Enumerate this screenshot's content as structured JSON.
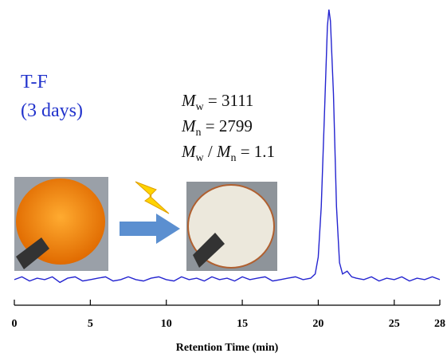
{
  "chart_data": {
    "type": "line",
    "x_label": "Retention Time (min)",
    "xlim": [
      0,
      28
    ],
    "xticks": [
      0,
      5,
      10,
      15,
      20,
      25,
      28
    ],
    "ylim": [
      0,
      100
    ],
    "grid": false,
    "annotations": [
      "T-F",
      "(3 days)"
    ],
    "stats": [
      [
        {
          "t": "M",
          "italic": true
        },
        {
          "t": "w",
          "sub": true
        },
        {
          "t": " = 3111"
        }
      ],
      [
        {
          "t": "M",
          "italic": true
        },
        {
          "t": "n",
          "sub": true
        },
        {
          "t": " = 2799"
        }
      ],
      [
        {
          "t": "M",
          "italic": true
        },
        {
          "t": "w",
          "sub": true
        },
        {
          "t": " / "
        },
        {
          "t": "M",
          "italic": true
        },
        {
          "t": "n",
          "sub": true
        },
        {
          "t": " = 1.1"
        }
      ]
    ],
    "series": [
      {
        "color": "#2424d0",
        "x": [
          0,
          0.5,
          1,
          1.5,
          2,
          2.5,
          3,
          3.5,
          4,
          4.5,
          5,
          5.5,
          6,
          6.5,
          7,
          7.5,
          8,
          8.5,
          9,
          9.5,
          10,
          10.5,
          11,
          11.5,
          12,
          12.5,
          13,
          13.5,
          14,
          14.5,
          15,
          15.5,
          16,
          16.5,
          17,
          17.5,
          18,
          18.5,
          19,
          19.5,
          19.8,
          20.0,
          20.2,
          20.4,
          20.6,
          20.7,
          20.8,
          21.0,
          21.2,
          21.4,
          21.6,
          21.9,
          22.2,
          22.5,
          23,
          23.5,
          24,
          24.5,
          25,
          25.5,
          26,
          26.5,
          27,
          27.5,
          28
        ],
        "values": [
          4,
          5,
          3.5,
          4.5,
          4,
          5,
          3,
          4.5,
          5,
          3.5,
          4,
          4.5,
          5,
          3.5,
          4,
          5,
          4,
          3.5,
          4.5,
          5,
          4,
          3.5,
          5,
          4,
          4.5,
          3.5,
          5,
          4,
          4.5,
          3.5,
          5,
          4,
          4.5,
          5,
          3.5,
          4,
          4.5,
          5,
          4,
          4.5,
          6,
          12,
          30,
          62,
          94,
          100,
          96,
          70,
          30,
          10,
          6,
          7,
          5,
          4.5,
          4,
          5,
          3.5,
          4.5,
          4,
          5,
          3.5,
          4.5,
          4,
          5,
          4
        ]
      }
    ]
  }
}
